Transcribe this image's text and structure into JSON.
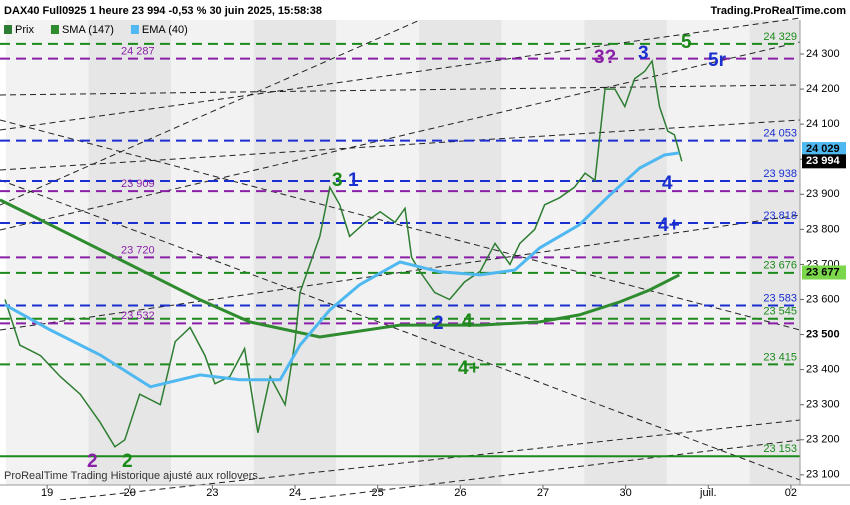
{
  "chart_data": {
    "type": "line",
    "title": "DAX40 Full0925 1 heure 23 994 -0,53 % 30 juin 2025, 15:58:38",
    "source": "Trading.ProRealTime.com",
    "footnote": "ProRealTime Trading Historique ajusté aux rollovers",
    "xlim": [
      -0.57,
      9.11
    ],
    "ylim": [
      23071,
      24397
    ],
    "xticks": [
      {
        "value": 0,
        "label": "19"
      },
      {
        "value": 1,
        "label": "20"
      },
      {
        "value": 2,
        "label": "23"
      },
      {
        "value": 3,
        "label": "24"
      },
      {
        "value": 4,
        "label": "25"
      },
      {
        "value": 5,
        "label": "26"
      },
      {
        "value": 6,
        "label": "27"
      },
      {
        "value": 7,
        "label": "30"
      },
      {
        "value": 8,
        "label": "juil."
      },
      {
        "value": 9,
        "label": "02"
      }
    ],
    "yticks": [
      {
        "value": 23100,
        "label": "23 100"
      },
      {
        "value": 23200,
        "label": "23 200"
      },
      {
        "value": 23300,
        "label": "23 300"
      },
      {
        "value": 23400,
        "label": "23 400"
      },
      {
        "value": 23500,
        "label": "23 500"
      },
      {
        "value": 23600,
        "label": "23 600"
      },
      {
        "value": 23700,
        "label": "23 700"
      },
      {
        "value": 23800,
        "label": "23 800"
      },
      {
        "value": 23900,
        "label": "23 900"
      },
      {
        "value": 24000,
        "label": "24 000"
      },
      {
        "value": 24100,
        "label": "24 100"
      },
      {
        "value": 24200,
        "label": "24 200"
      },
      {
        "value": 24300,
        "label": "24 300"
      }
    ],
    "series": [
      {
        "name": "Prix",
        "color": "#2e7d32",
        "x": [
          -0.51,
          -0.33,
          -0.08,
          0.16,
          0.4,
          0.64,
          0.82,
          0.94,
          1.12,
          1.37,
          1.55,
          1.73,
          1.91,
          2.03,
          2.21,
          2.39,
          2.55,
          2.7,
          2.88,
          3.0,
          3.06,
          3.18,
          3.3,
          3.42,
          3.54,
          3.66,
          3.85,
          4.03,
          4.21,
          4.33,
          4.41,
          4.51,
          4.69,
          4.87,
          5.05,
          5.24,
          5.42,
          5.6,
          5.72,
          5.9,
          6.02,
          6.2,
          6.38,
          6.51,
          6.63,
          6.75,
          6.87,
          6.99,
          7.11,
          7.23,
          7.32,
          7.41,
          7.51,
          7.59,
          7.68
        ],
        "values": [
          23600,
          23470,
          23440,
          23380,
          23330,
          23250,
          23180,
          23200,
          23330,
          23300,
          23480,
          23520,
          23440,
          23360,
          23380,
          23460,
          23220,
          23380,
          23300,
          23480,
          23620,
          23700,
          23780,
          23920,
          23870,
          23780,
          23820,
          23850,
          23820,
          23860,
          23720,
          23680,
          23620,
          23600,
          23650,
          23680,
          23760,
          23700,
          23760,
          23800,
          23870,
          23890,
          23920,
          23960,
          23940,
          24200,
          24200,
          24150,
          24230,
          24250,
          24280,
          24150,
          24080,
          24070,
          23994
        ]
      },
      {
        "name": "SMA (147)",
        "color": "#2e8b2e",
        "x": [
          -0.57,
          0.04,
          0.94,
          1.85,
          2.45,
          3.3,
          4.27,
          5.24,
          5.96,
          6.44,
          6.93,
          7.29,
          7.65
        ],
        "values": [
          23884,
          23813,
          23707,
          23599,
          23536,
          23493,
          23527,
          23527,
          23536,
          23556,
          23593,
          23627,
          23670
        ]
      },
      {
        "name": "EMA (40)",
        "color": "#4fb8f0",
        "x": [
          -0.51,
          0.04,
          0.64,
          1.25,
          1.85,
          2.33,
          2.82,
          3.06,
          3.42,
          3.78,
          4.27,
          4.75,
          5.24,
          5.66,
          5.96,
          6.44,
          6.81,
          7.17,
          7.47,
          7.65
        ],
        "values": [
          23585,
          23513,
          23442,
          23351,
          23385,
          23371,
          23371,
          23470,
          23570,
          23642,
          23707,
          23679,
          23670,
          23684,
          23747,
          23813,
          23898,
          23975,
          24012,
          24018
        ]
      }
    ],
    "levels": [
      {
        "value": 24329,
        "label": "24 329",
        "color": "#1b8a1b",
        "side": "right"
      },
      {
        "value": 24287,
        "label": "24 287",
        "color": "#8a1fa8",
        "side": "left"
      },
      {
        "value": 24053,
        "label": "24 053",
        "color": "#1a2fd0",
        "side": "right"
      },
      {
        "value": 23938,
        "label": "23 938",
        "color": "#1a2fd0",
        "side": "right"
      },
      {
        "value": 23909,
        "label": "23 909",
        "color": "#8a1fa8",
        "side": "left"
      },
      {
        "value": 23818,
        "label": "23 818",
        "color": "#1a2fd0",
        "side": "right"
      },
      {
        "value": 23720,
        "label": "23 720",
        "color": "#8a1fa8",
        "side": "left"
      },
      {
        "value": 23676,
        "label": "23 676",
        "color": "#1b8a1b",
        "side": "right"
      },
      {
        "value": 23583,
        "label": "23 583",
        "color": "#1a2fd0",
        "side": "right"
      },
      {
        "value": 23545,
        "label": "23 545",
        "color": "#1b8a1b",
        "side": "right"
      },
      {
        "value": 23532,
        "label": "23 532",
        "color": "#8a1fa8",
        "side": "left"
      },
      {
        "value": 23415,
        "label": "23 415",
        "color": "#1b8a1b",
        "side": "right"
      },
      {
        "value": 23153,
        "label": "23 153",
        "color": "#1b8a1b",
        "side": "right"
      }
    ],
    "price_boxes": [
      {
        "value": 24029,
        "label": "24 029",
        "color": "#4fb8f0"
      },
      {
        "value": 23994,
        "label": "23 994",
        "color": "#000000"
      },
      {
        "value": 23677,
        "label": "23 677",
        "color": "#7ad64a"
      }
    ],
    "annotations": [
      "3?",
      "3",
      "5",
      "5r",
      "3",
      "1",
      "4",
      "4+",
      "2",
      "4",
      "4+",
      "2",
      "2"
    ]
  }
}
